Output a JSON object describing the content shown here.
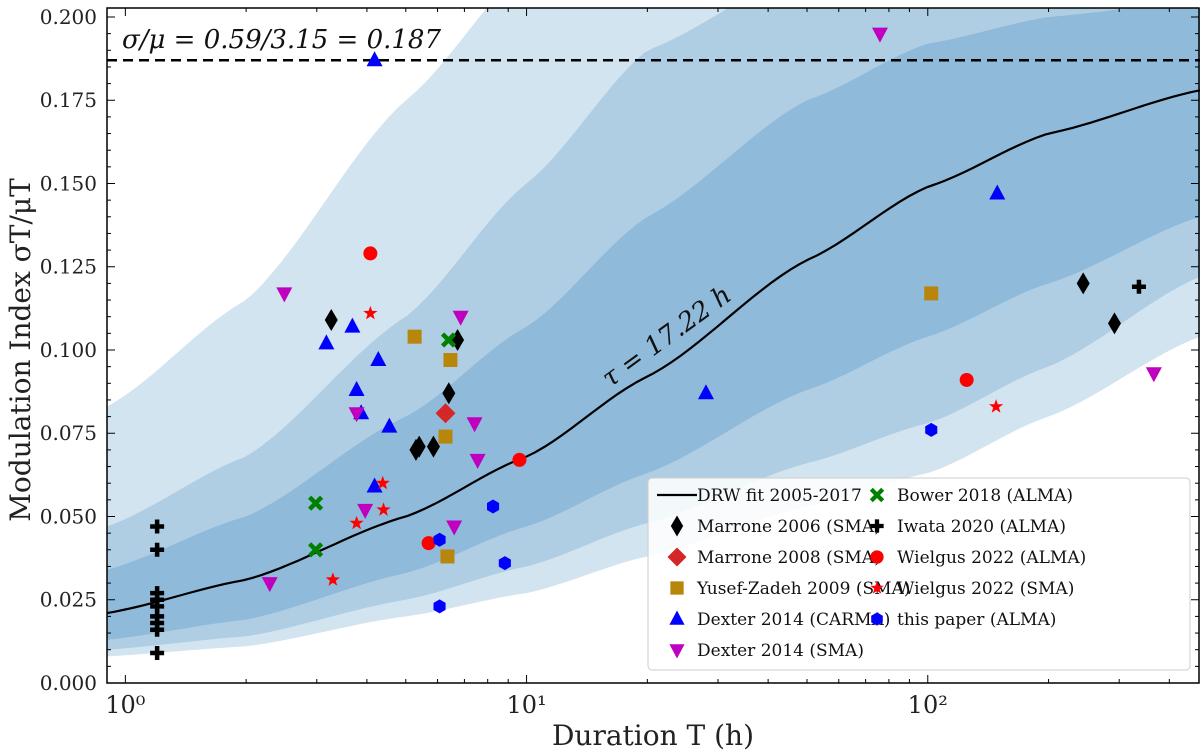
{
  "chart_data": {
    "type": "scatter",
    "title": "",
    "xlabel": "Duration T (h)",
    "ylabel": "Modulation Index σT/μT",
    "xscale": "log",
    "xlim": [
      0.9,
      477
    ],
    "ylim": [
      0.0,
      0.2027
    ],
    "xticks": [
      {
        "v": 1,
        "label": "10⁰"
      },
      {
        "v": 10,
        "label": "10¹"
      },
      {
        "v": 100,
        "label": "10²"
      }
    ],
    "yticks": [
      "0.000",
      "0.025",
      "0.050",
      "0.075",
      "0.100",
      "0.125",
      "0.150",
      "0.175",
      "0.200"
    ],
    "hline": {
      "y": 0.187,
      "label": "σ/μ = 0.59/3.15 = 0.187",
      "style": "dashed"
    },
    "fit_label": "τ = 17.22 h",
    "legend_placement": "lower-right",
    "band_x": [
      0.9,
      2,
      5,
      10,
      20,
      50,
      100,
      200,
      477
    ],
    "fit_curve": [
      0.021,
      0.031,
      0.05,
      0.068,
      0.092,
      0.127,
      0.149,
      0.165,
      0.178
    ],
    "bands": [
      {
        "name": "3sigma",
        "color": "#d3e4f1",
        "low": [
          0.008,
          0.011,
          0.02,
          0.027,
          0.038,
          0.053,
          0.063,
          0.08,
          0.104
        ],
        "high": [
          0.083,
          0.115,
          0.175,
          0.215,
          0.215,
          0.215,
          0.215,
          0.215,
          0.215
        ]
      },
      {
        "name": "2sigma",
        "color": "#afcee4",
        "low": [
          0.01,
          0.014,
          0.025,
          0.035,
          0.048,
          0.066,
          0.078,
          0.095,
          0.122
        ],
        "high": [
          0.047,
          0.068,
          0.11,
          0.15,
          0.19,
          0.215,
          0.215,
          0.215,
          0.215
        ]
      },
      {
        "name": "1sigma",
        "color": "#8fbada",
        "low": [
          0.013,
          0.019,
          0.033,
          0.047,
          0.063,
          0.088,
          0.104,
          0.12,
          0.14
        ],
        "high": [
          0.034,
          0.05,
          0.08,
          0.107,
          0.14,
          0.175,
          0.192,
          0.2,
          0.205
        ]
      }
    ],
    "series": [
      {
        "name": "DRW fit 2005-2017",
        "marker": "line",
        "color": "#000000",
        "x": [],
        "y": []
      },
      {
        "name": "Marrone 2006 (SMA)",
        "marker": "diamond",
        "color": "#000000",
        "x": [
          3.26,
          6.73,
          6.4,
          5.3,
          5.4,
          5.86,
          244,
          292
        ],
        "y": [
          0.109,
          0.103,
          0.087,
          0.07,
          0.071,
          0.071,
          0.12,
          0.108
        ]
      },
      {
        "name": "Marrone 2008 (SMA)",
        "marker": "diamond",
        "color": "#d62728",
        "x": [
          6.28
        ],
        "y": [
          0.081
        ]
      },
      {
        "name": "Yusef-Zadeh 2009 (SMA)",
        "marker": "square",
        "color": "#b8860b",
        "x": [
          5.26,
          6.46,
          6.28,
          6.35,
          102
        ],
        "y": [
          0.104,
          0.097,
          0.074,
          0.038,
          0.117
        ]
      },
      {
        "name": "Dexter 2014 (CARMA)",
        "marker": "triangle-up",
        "color": "#0000ff",
        "x": [
          4.18,
          3.17,
          3.68,
          4.27,
          3.77,
          3.87,
          4.55,
          4.18,
          28,
          149
        ],
        "y": [
          0.187,
          0.102,
          0.107,
          0.097,
          0.088,
          0.081,
          0.077,
          0.059,
          0.087,
          0.147
        ]
      },
      {
        "name": "Dexter 2014 (SMA)",
        "marker": "triangle-down",
        "color": "#bf00bf",
        "x": [
          2.49,
          6.85,
          3.77,
          3.96,
          7.42,
          7.55,
          6.6,
          2.29,
          76,
          366
        ],
        "y": [
          0.117,
          0.11,
          0.081,
          0.052,
          0.078,
          0.067,
          0.047,
          0.03,
          0.195,
          0.093
        ]
      },
      {
        "name": "Bower 2018 (ALMA)",
        "marker": "x",
        "color": "#008000",
        "x": [
          2.98,
          2.98,
          6.39
        ],
        "y": [
          0.054,
          0.04,
          0.103
        ]
      },
      {
        "name": "Iwata 2020 (ALMA)",
        "marker": "plus",
        "color": "#000000",
        "x": [
          1.2,
          1.2,
          1.2,
          1.2,
          1.2,
          1.2,
          1.2,
          1.2,
          1.2,
          336
        ],
        "y": [
          0.047,
          0.04,
          0.027,
          0.025,
          0.023,
          0.02,
          0.018,
          0.016,
          0.009,
          0.119
        ]
      },
      {
        "name": "Wielgus 2022 (ALMA)",
        "marker": "circle",
        "color": "#ff0000",
        "x": [
          4.08,
          5.7,
          9.6,
          125
        ],
        "y": [
          0.129,
          0.042,
          0.067,
          0.091
        ]
      },
      {
        "name": "Wielgus 2022 (SMA)",
        "marker": "star",
        "color": "#ff0000",
        "x": [
          4.08,
          4.38,
          3.77,
          4.4,
          3.29,
          148
        ],
        "y": [
          0.111,
          0.06,
          0.048,
          0.052,
          0.031,
          0.083
        ]
      },
      {
        "name": "this paper (ALMA)",
        "marker": "hexagon",
        "color": "#0000ff",
        "x": [
          6.07,
          6.07,
          8.25,
          8.83,
          102
        ],
        "y": [
          0.043,
          0.023,
          0.053,
          0.036,
          0.076
        ]
      }
    ]
  }
}
